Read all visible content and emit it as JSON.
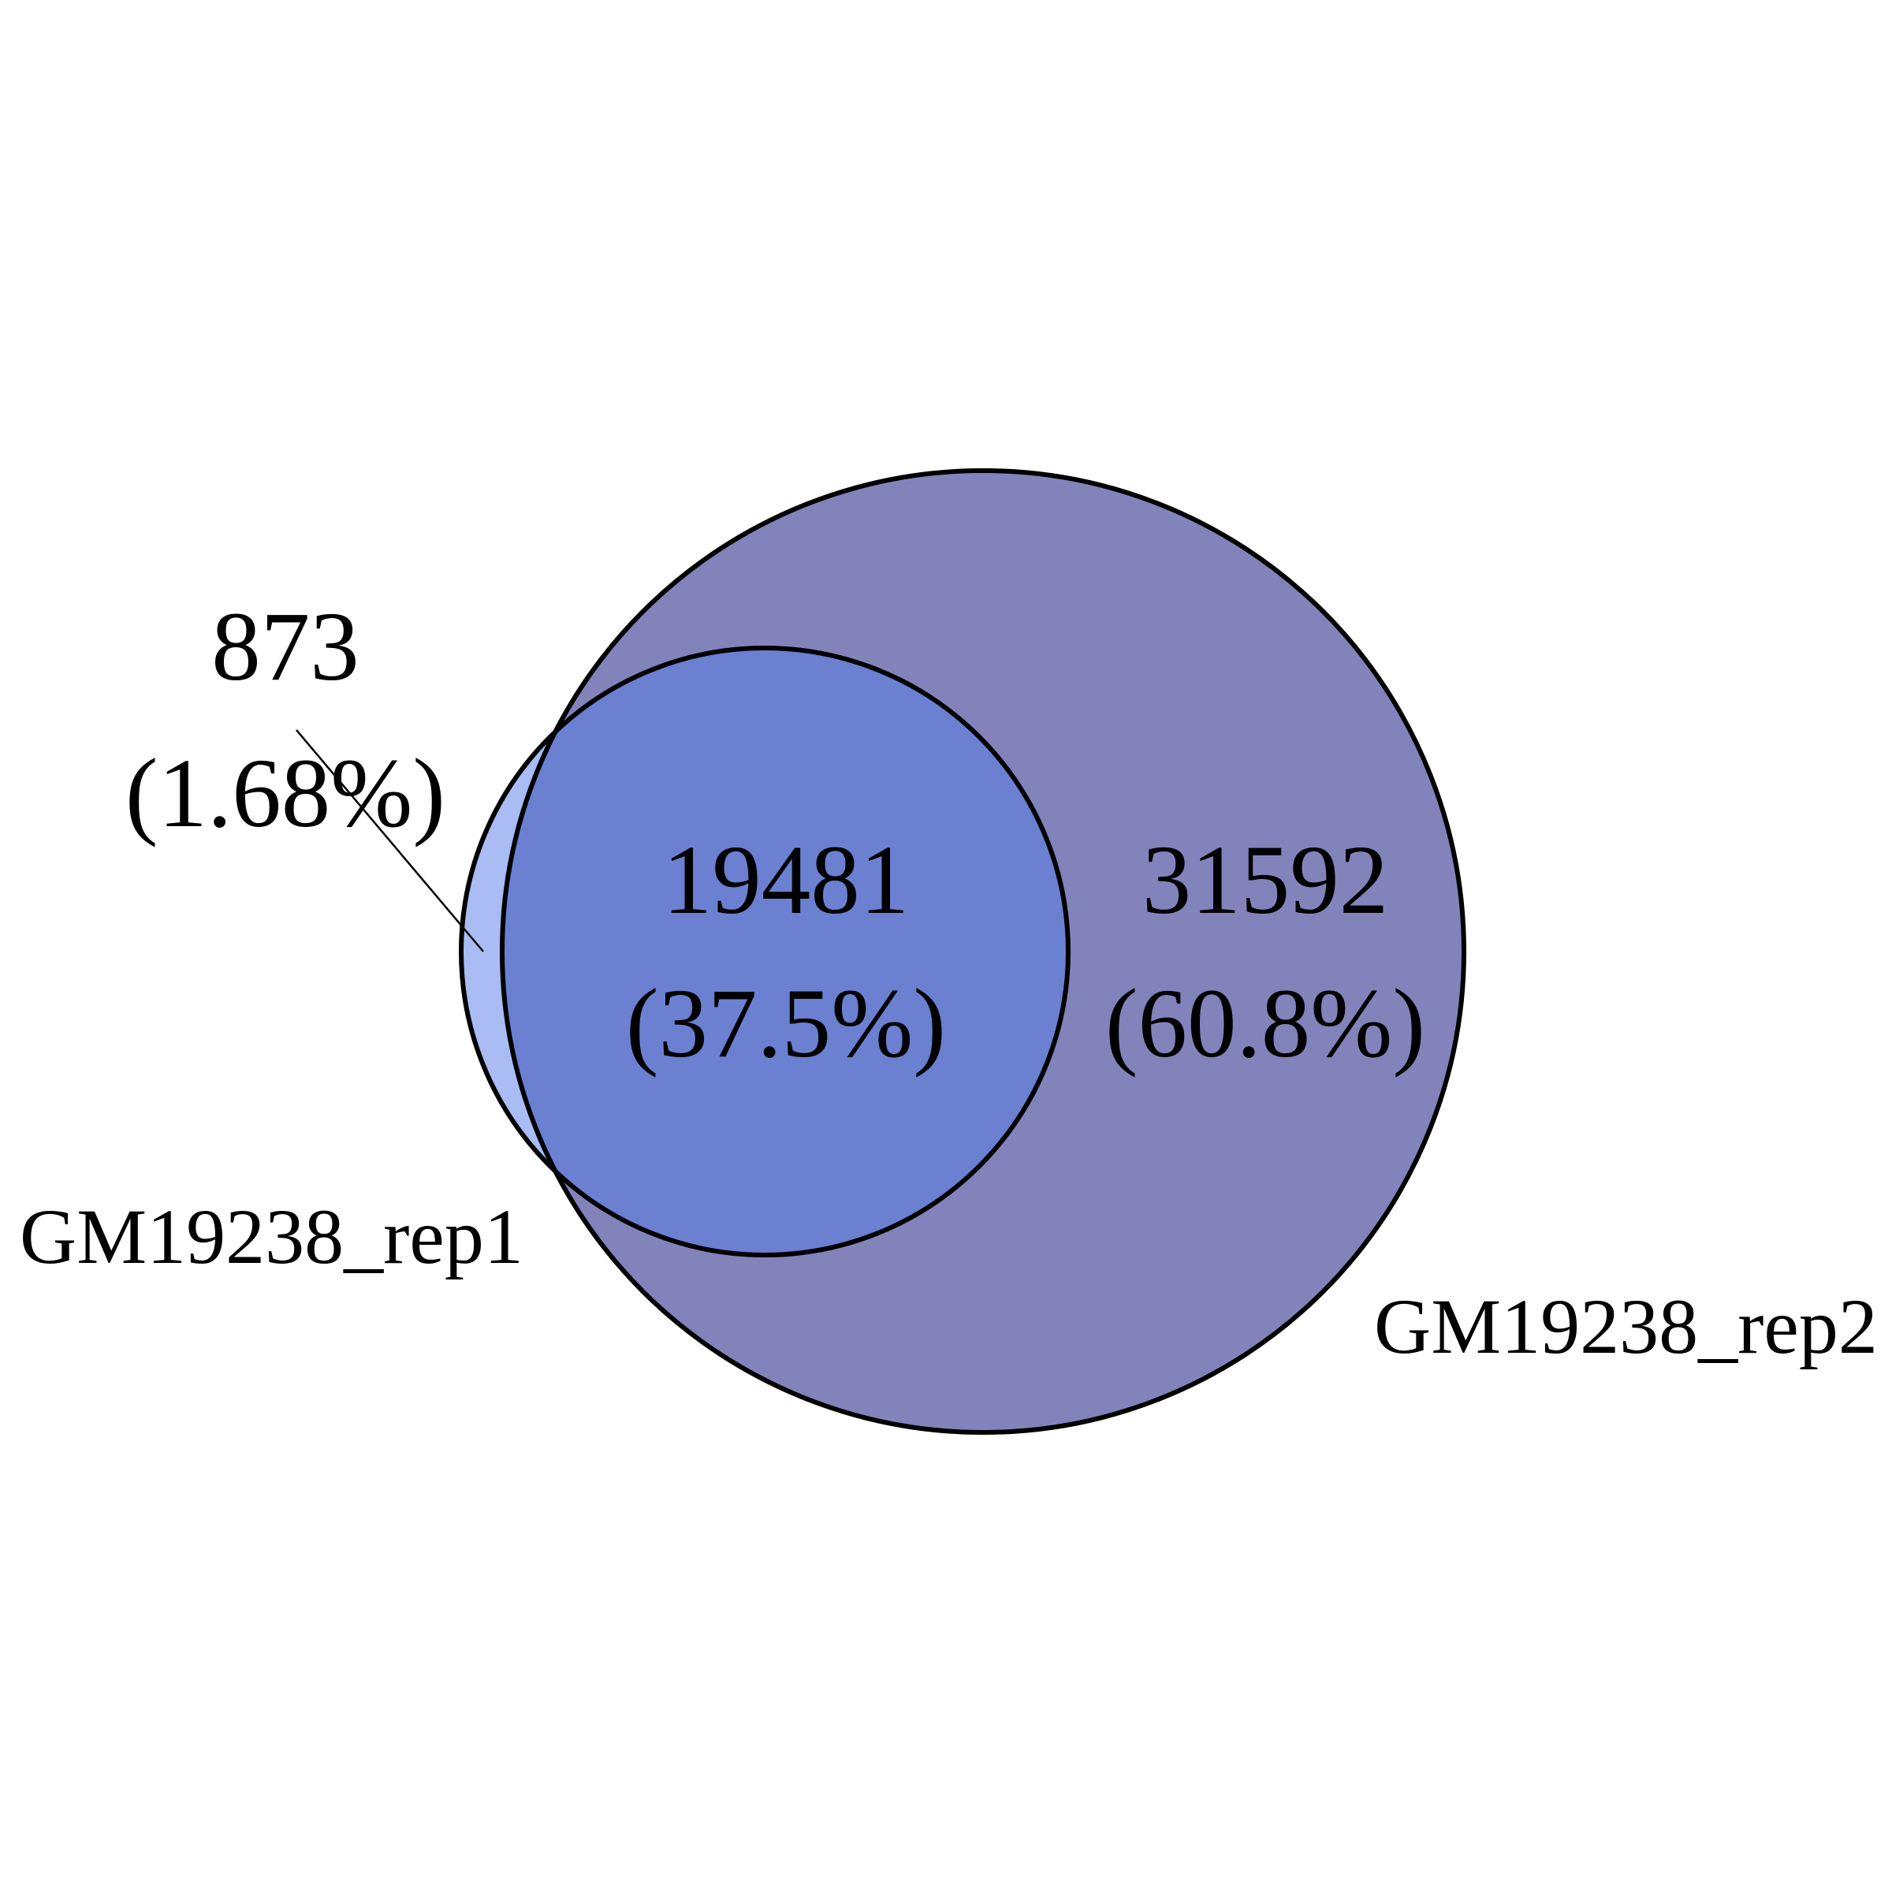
{
  "diagram": {
    "type": "venn-2",
    "sets": [
      {
        "name": "GM19238_rep1",
        "fill": "#8FA7F0"
      },
      {
        "name": "GM19238_rep2",
        "fill": "#4B4B9B"
      }
    ],
    "regions": {
      "rep1_only": {
        "count": "873",
        "percent": "(1.68%)"
      },
      "overlap": {
        "count": "19481",
        "percent": "(37.5%)"
      },
      "rep2_only": {
        "count": "31592",
        "percent": "(60.8%)"
      }
    },
    "colors": {
      "rep1_only": "#A9BCF3",
      "overlap": "#6B80D1",
      "rep2_only": "#8383BB",
      "outline": "#000000"
    }
  }
}
